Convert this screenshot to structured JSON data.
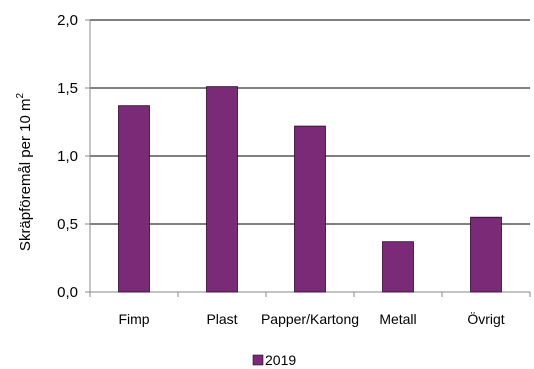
{
  "chart_data": {
    "type": "bar",
    "categories": [
      "Fimp",
      "Plast",
      "Papper/Kartong",
      "Metall",
      "Övrigt"
    ],
    "series": [
      {
        "name": "2019",
        "values": [
          1.37,
          1.51,
          1.22,
          0.37,
          0.55
        ]
      }
    ],
    "ylabel": "Skräpföremål per 10 m",
    "ylabel_superscript": "2",
    "ylim": [
      0,
      2.0
    ],
    "yticks": [
      0,
      0.5,
      1.0,
      1.5,
      2.0
    ],
    "ytick_labels": [
      "0,0",
      "0,5",
      "1,0",
      "1,5",
      "2,0"
    ],
    "grid": true,
    "legend_position": "bottom",
    "colors": {
      "bar": "#7B2A78",
      "bar_edge": "#2a0a28",
      "grid": "#000000"
    }
  }
}
